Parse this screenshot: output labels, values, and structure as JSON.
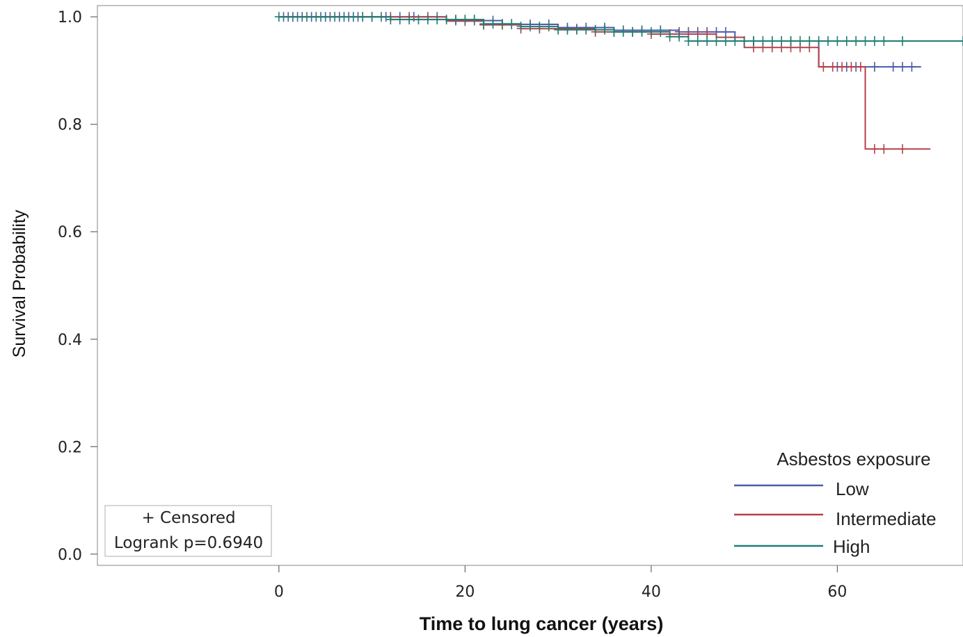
{
  "chart_data": {
    "type": "line",
    "xlabel": "Time to lung cancer (years)",
    "ylabel": "Survival Probability",
    "xlim": [
      -19.5,
      73.5
    ],
    "ylim": [
      -0.021,
      1.021
    ],
    "x_ticks": [
      0,
      20,
      40,
      60
    ],
    "y_ticks": [
      0.0,
      0.2,
      0.4,
      0.6,
      0.8,
      1.0
    ],
    "x_tick_labels": [
      "0",
      "20",
      "40",
      "60"
    ],
    "y_tick_labels": [
      "0.0",
      "0.2",
      "0.4",
      "0.6",
      "0.8",
      "1.0"
    ],
    "grid": false,
    "legend": {
      "title": "Asbestos exposure",
      "placement": "bottom-right",
      "entries": [
        "Low",
        "Intermediate",
        "High"
      ]
    },
    "inset": {
      "placement": "bottom-left",
      "lines": [
        "+ Censored",
        "Logrank p=0.6940"
      ]
    },
    "series": [
      {
        "name": "Low",
        "color": "#4b5bab",
        "steps": [
          [
            0,
            1.0
          ],
          [
            18,
            0.993
          ],
          [
            24,
            0.986
          ],
          [
            30,
            0.98
          ],
          [
            36,
            0.975
          ],
          [
            43,
            0.972
          ],
          [
            49,
            0.955
          ],
          [
            58,
            0.907
          ],
          [
            69,
            0.907
          ]
        ],
        "censored": [
          0.5,
          1.5,
          2.5,
          3.5,
          4.5,
          5.5,
          6.5,
          7.5,
          8.5,
          10,
          11.5,
          13,
          14.5,
          17,
          19,
          21,
          23,
          25,
          27,
          29,
          31,
          33,
          35,
          37,
          39,
          41,
          43,
          44,
          45,
          46,
          47,
          48,
          51,
          53,
          55,
          57,
          60,
          61,
          62,
          64,
          66,
          67,
          68
        ]
      },
      {
        "name": "Intermediate",
        "color": "#b5404a",
        "steps": [
          [
            0,
            1.0
          ],
          [
            18,
            0.992
          ],
          [
            22,
            0.985
          ],
          [
            26,
            0.978
          ],
          [
            34,
            0.972
          ],
          [
            40,
            0.968
          ],
          [
            47,
            0.962
          ],
          [
            50,
            0.943
          ],
          [
            58,
            0.907
          ],
          [
            63,
            0.754
          ],
          [
            70,
            0.754
          ]
        ],
        "censored": [
          9,
          12,
          14,
          16,
          20,
          22,
          24,
          26,
          28,
          30,
          32,
          34,
          36,
          38,
          40,
          42,
          43,
          44,
          45,
          46,
          51,
          52,
          53,
          54,
          55,
          56,
          57,
          58.5,
          59.5,
          60.5,
          61.5,
          62.5,
          64,
          65,
          67
        ]
      },
      {
        "name": "High",
        "color": "#1f7d72",
        "steps": [
          [
            0,
            1.0
          ],
          [
            12,
            0.995
          ],
          [
            22,
            0.987
          ],
          [
            26,
            0.982
          ],
          [
            30,
            0.976
          ],
          [
            36,
            0.972
          ],
          [
            42,
            0.963
          ],
          [
            44,
            0.955
          ],
          [
            73.5,
            0.955
          ]
        ],
        "censored": [
          0,
          1,
          2,
          3,
          4,
          5,
          6,
          7,
          8,
          9,
          10,
          11,
          12,
          13,
          14,
          15,
          16,
          17,
          18,
          19,
          20,
          21,
          22,
          23,
          24,
          25,
          26,
          27,
          28,
          29,
          30,
          31,
          32,
          33,
          34,
          35,
          36,
          37,
          38,
          39,
          40,
          41,
          42,
          43,
          44,
          45,
          46,
          47,
          48,
          49,
          50,
          51,
          52,
          53,
          54,
          55,
          56,
          57,
          58,
          59,
          60,
          61,
          62,
          63,
          64,
          65,
          67,
          73.5
        ]
      }
    ]
  }
}
